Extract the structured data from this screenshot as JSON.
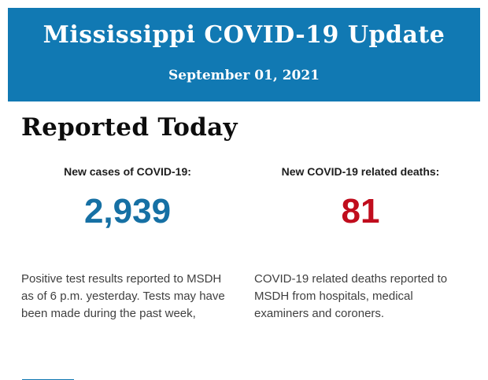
{
  "header": {
    "title": "Mississippi COVID-19 Update",
    "date": "September 01, 2021",
    "background_color": "#1179B3"
  },
  "section": {
    "heading": "Reported Today"
  },
  "stats": {
    "cases": {
      "label": "New cases of COVID-19:",
      "value": "2,939",
      "value_color": "#1670A4",
      "description": "Positive test results reported to MSDH as of 6 p.m. yesterday. Tests may have been made during the past week,"
    },
    "deaths": {
      "label": "New COVID-19 related deaths:",
      "value": "81",
      "value_color": "#C00D1D",
      "description": "COVID-19 related deaths reported to MSDH from hospitals, medical examiners and coroners."
    }
  },
  "footer": {
    "partial_bar_color": "#1179B3"
  }
}
